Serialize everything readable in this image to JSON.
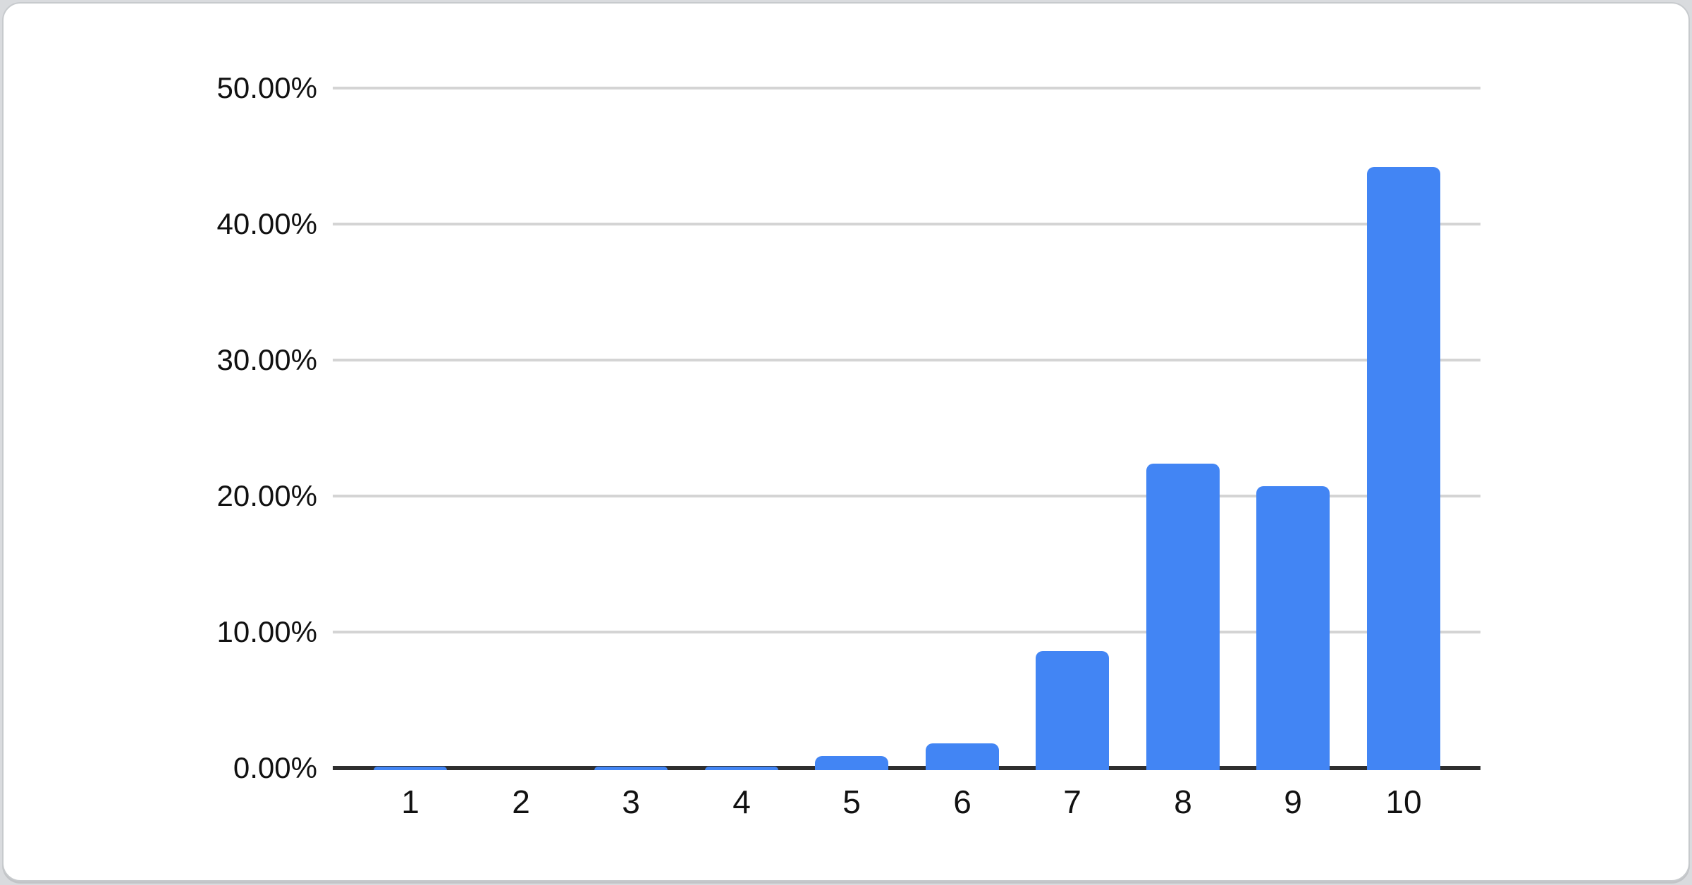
{
  "card": {
    "background": "#ffffff",
    "border_color": "#c7cacd",
    "page_background": "#d9dbde"
  },
  "chart_data": {
    "type": "bar",
    "title": "",
    "xlabel": "",
    "ylabel": "",
    "categories": [
      "1",
      "2",
      "3",
      "4",
      "5",
      "6",
      "7",
      "8",
      "9",
      "10"
    ],
    "values": [
      0.1,
      0.0,
      0.1,
      0.1,
      0.9,
      1.8,
      8.6,
      22.4,
      20.7,
      44.2
    ],
    "unit": "%",
    "ylim": [
      0,
      50
    ],
    "y_tick_values": [
      0,
      10,
      20,
      30,
      40,
      50
    ],
    "y_tick_labels": [
      "0.00%",
      "10.00%",
      "20.00%",
      "30.00%",
      "40.00%",
      "50.00%"
    ],
    "grid": true,
    "legend_position": "none",
    "bar_color": "#4285f4",
    "gridline_color": "#d4d4d4",
    "axis_line_color": "#2e2e2e",
    "label_color": "#111111"
  }
}
